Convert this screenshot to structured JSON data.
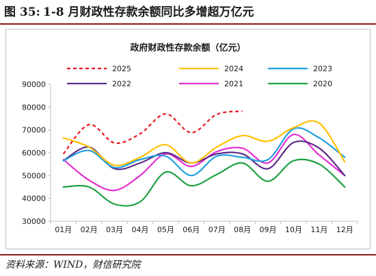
{
  "figure": {
    "label": "图 35:",
    "title": "1-8 月财政性存款余额同比多增超万亿元",
    "source": "资料来源：WIND，财信研究院"
  },
  "colors": {
    "rule": "#8b1a1a",
    "2025": "#e8191f",
    "2024": "#ffc000",
    "2023": "#1f9fe0",
    "2022": "#5b2a86",
    "2021": "#e62ed1",
    "2020": "#1fa142"
  },
  "chart_data": {
    "type": "line",
    "title": "政府财政性存款余额（亿元）",
    "categories": [
      "01月",
      "02月",
      "03月",
      "04月",
      "05月",
      "06月",
      "07月",
      "08月",
      "09月",
      "10月",
      "11月",
      "12月"
    ],
    "ylim": [
      30000,
      90000
    ],
    "yticks": [
      30000,
      40000,
      50000,
      60000,
      70000,
      80000,
      90000
    ],
    "grid": false,
    "legend_placement": "top",
    "series": [
      {
        "name": "2025",
        "dashed": true,
        "values": [
          59500,
          72300,
          64300,
          68300,
          77000,
          68800,
          76800,
          78200,
          null,
          null,
          null,
          null
        ]
      },
      {
        "name": "2024",
        "dashed": false,
        "values": [
          66500,
          62500,
          54500,
          58000,
          63500,
          55500,
          62500,
          67500,
          65000,
          71000,
          73000,
          56000
        ]
      },
      {
        "name": "2023",
        "dashed": false,
        "values": [
          56500,
          61000,
          53500,
          57000,
          58500,
          50000,
          58500,
          58000,
          57000,
          70500,
          66500,
          58000
        ]
      },
      {
        "name": "2022",
        "dashed": false,
        "values": [
          56500,
          62500,
          53000,
          55500,
          60000,
          55500,
          59500,
          59500,
          53000,
          64500,
          62000,
          50000
        ]
      },
      {
        "name": "2021",
        "dashed": false,
        "values": [
          57000,
          48000,
          43500,
          50000,
          59500,
          54000,
          60500,
          62000,
          55500,
          68000,
          59000,
          50000
        ]
      },
      {
        "name": "2020",
        "dashed": false,
        "values": [
          45000,
          45000,
          37500,
          38500,
          51500,
          45500,
          50500,
          55500,
          47500,
          56500,
          55000,
          45000
        ]
      }
    ]
  }
}
